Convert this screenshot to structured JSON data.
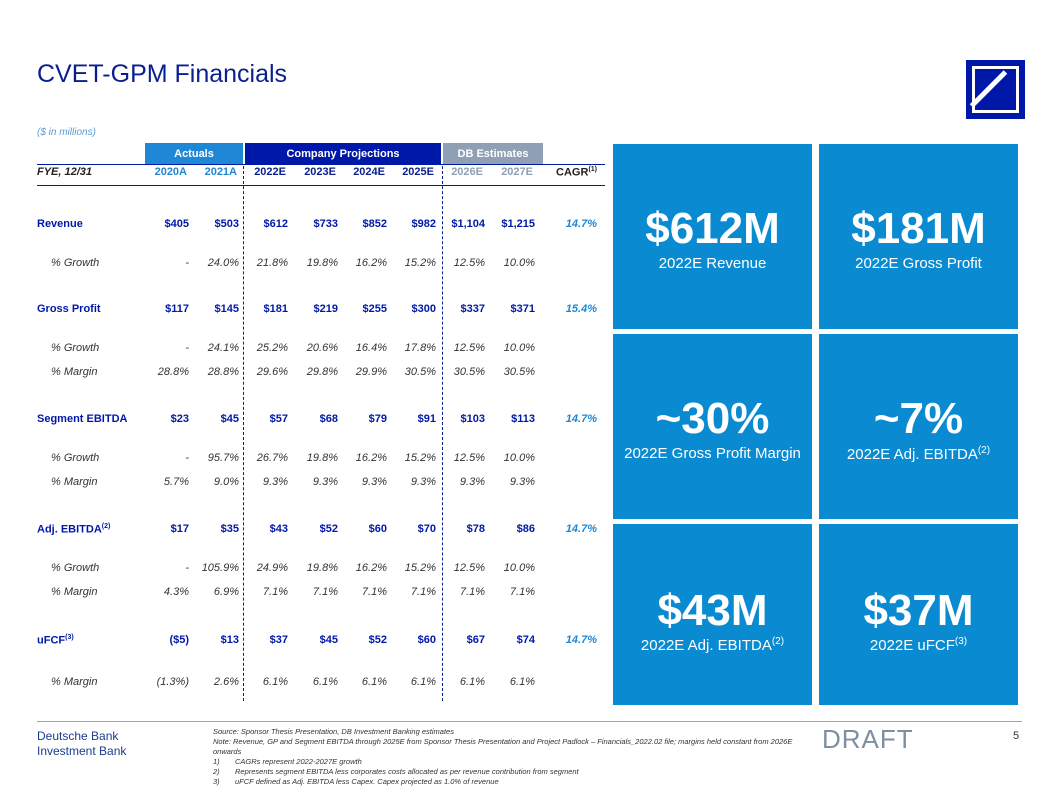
{
  "title": "CVET-GPM Financials",
  "units": "($ in millions)",
  "groups": {
    "actuals": "Actuals",
    "company": "Company Projections",
    "db": "DB Estimates"
  },
  "columns": {
    "fye": "FYE, 12/31",
    "c2020": "2020A",
    "c2021": "2021A",
    "c2022": "2022E",
    "c2023": "2023E",
    "c2024": "2024E",
    "c2025": "2025E",
    "c2026": "2026E",
    "c2027": "2027E",
    "cagr": "CAGR",
    "cagr_sup": "(1)"
  },
  "rows": [
    {
      "label": "Revenue",
      "sup": "",
      "values": [
        "$405",
        "$503",
        "$612",
        "$733",
        "$852",
        "$982",
        "$1,104",
        "$1,215"
      ],
      "cagr": "14.7%"
    },
    {
      "label": "% Growth",
      "values": [
        "-",
        "24.0%",
        "21.8%",
        "19.8%",
        "16.2%",
        "15.2%",
        "12.5%",
        "10.0%"
      ]
    },
    {
      "label": "Gross Profit",
      "sup": "",
      "values": [
        "$117",
        "$145",
        "$181",
        "$219",
        "$255",
        "$300",
        "$337",
        "$371"
      ],
      "cagr": "15.4%"
    },
    {
      "label": "% Growth",
      "values": [
        "-",
        "24.1%",
        "25.2%",
        "20.6%",
        "16.4%",
        "17.8%",
        "12.5%",
        "10.0%"
      ]
    },
    {
      "label": "% Margin",
      "values": [
        "28.8%",
        "28.8%",
        "29.6%",
        "29.8%",
        "29.9%",
        "30.5%",
        "30.5%",
        "30.5%"
      ]
    },
    {
      "label": "Segment EBITDA",
      "sup": "",
      "values": [
        "$23",
        "$45",
        "$57",
        "$68",
        "$79",
        "$91",
        "$103",
        "$113"
      ],
      "cagr": "14.7%"
    },
    {
      "label": "% Growth",
      "values": [
        "-",
        "95.7%",
        "26.7%",
        "19.8%",
        "16.2%",
        "15.2%",
        "12.5%",
        "10.0%"
      ]
    },
    {
      "label": "% Margin",
      "values": [
        "5.7%",
        "9.0%",
        "9.3%",
        "9.3%",
        "9.3%",
        "9.3%",
        "9.3%",
        "9.3%"
      ]
    },
    {
      "label": "Adj. EBITDA",
      "sup": "(2)",
      "values": [
        "$17",
        "$35",
        "$43",
        "$52",
        "$60",
        "$70",
        "$78",
        "$86"
      ],
      "cagr": "14.7%"
    },
    {
      "label": "% Growth",
      "values": [
        "-",
        "105.9%",
        "24.9%",
        "19.8%",
        "16.2%",
        "15.2%",
        "12.5%",
        "10.0%"
      ]
    },
    {
      "label": "% Margin",
      "values": [
        "4.3%",
        "6.9%",
        "7.1%",
        "7.1%",
        "7.1%",
        "7.1%",
        "7.1%",
        "7.1%"
      ]
    },
    {
      "label": "uFCF",
      "sup": "(3)",
      "values": [
        "($5)",
        "$13",
        "$37",
        "$45",
        "$52",
        "$60",
        "$67",
        "$74"
      ],
      "cagr": "14.7%"
    },
    {
      "label": "% Margin",
      "values": [
        "(1.3%)",
        "2.6%",
        "6.1%",
        "6.1%",
        "6.1%",
        "6.1%",
        "6.1%",
        "6.1%"
      ]
    }
  ],
  "tiles": [
    {
      "value": "$612M",
      "caption": "2022E Revenue",
      "sup": ""
    },
    {
      "value": "$181M",
      "caption": "2022E Gross Profit",
      "sup": ""
    },
    {
      "value": "~30%",
      "caption": "2022E Gross Profit Margin",
      "sup": ""
    },
    {
      "value": "~7%",
      "caption": "2022E Adj. EBITDA",
      "sup": "(2)"
    },
    {
      "value": "$43M",
      "caption": "2022E Adj. EBITDA",
      "sup": "(2)"
    },
    {
      "value": "$37M",
      "caption": "2022E uFCF",
      "sup": "(3)"
    }
  ],
  "footer": {
    "bank_line1": "Deutsche Bank",
    "bank_line2": "Investment Bank",
    "source": "Source: Sponsor Thesis Presentation, DB Investment Banking estimates",
    "note": "Note: Revenue, GP and Segment EBITDA through 2025E from Sponsor Thesis Presentation and Project Padlock – Financials_2022.02 file; margins held constant from 2026E onwards",
    "fn1_num": "1)",
    "fn1": "CAGRs represent 2022-2027E growth",
    "fn2_num": "2)",
    "fn2": "Represents segment EBITDA less corporates costs allocated as per revenue contribution from segment",
    "fn3_num": "3)",
    "fn3": "uFCF defined as Adj. EBITDA less Capex. Capex projected as 1.0% of revenue",
    "draft": "DRAFT",
    "page": "5"
  },
  "colors": {
    "navy": "#0018a8",
    "blue": "#1e88d6",
    "tile": "#0a8bd1",
    "gray": "#8fa0b5"
  },
  "logo_icon": "deutsche-bank-logo"
}
